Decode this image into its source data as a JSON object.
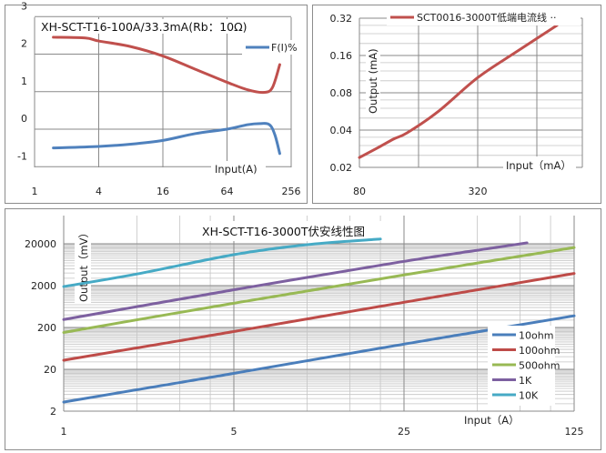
{
  "chart_data": [
    {
      "type": "line",
      "title": "XH-SCT-T16-100A/33.3mA(Rb：10Ω)",
      "xlabel": "Input(A)",
      "ylabel": "",
      "x_scale": "log2",
      "xlim": [
        1,
        256
      ],
      "ylim": [
        -1,
        3
      ],
      "x_ticks": [
        "1",
        "4",
        "16",
        "64",
        "256"
      ],
      "y_ticks": [
        "-1",
        "0",
        "1",
        "2",
        "3"
      ],
      "grid": true,
      "legend": "top-right",
      "series": [
        {
          "color": "#c0504d",
          "x": [
            1.5,
            3,
            4,
            8,
            16,
            32,
            64,
            100,
            140,
            170,
            200
          ],
          "y": [
            2.45,
            2.43,
            2.35,
            2.2,
            1.95,
            1.6,
            1.25,
            1.05,
            0.98,
            1.1,
            1.72
          ]
        },
        {
          "name": "F(I)%",
          "color": "#4f81bd",
          "x": [
            1.5,
            4,
            8,
            16,
            32,
            64,
            100,
            130,
            160,
            180,
            200
          ],
          "y": [
            -0.5,
            -0.46,
            -0.4,
            -0.3,
            -0.12,
            0.0,
            0.12,
            0.15,
            0.12,
            -0.15,
            -0.65
          ]
        }
      ]
    },
    {
      "type": "line",
      "title": "",
      "xlabel": "Input（mA）",
      "ylabel": "Output (mA)",
      "x_scale": "log",
      "y_scale": "log",
      "xlim": [
        80,
        1100
      ],
      "ylim": [
        0.02,
        0.32
      ],
      "x_ticks": [
        "80",
        "320"
      ],
      "y_ticks": [
        "0.02",
        "0.04",
        "0.08",
        "0.16",
        "0.32"
      ],
      "grid": true,
      "legend": "top",
      "series": [
        {
          "name": "SCT0016-3000T低端电流线 ··",
          "color": "#c0504d",
          "x": [
            80,
            100,
            120,
            140,
            200,
            320,
            500,
            810
          ],
          "y": [
            0.024,
            0.029,
            0.034,
            0.038,
            0.056,
            0.106,
            0.17,
            0.28
          ]
        }
      ]
    },
    {
      "type": "line",
      "title": "XH-SCT-T16-3000T伏安线性图",
      "xlabel": "Input（A）",
      "ylabel": "Output（mV）",
      "x_scale": "log",
      "y_scale": "log",
      "xlim": [
        1,
        125
      ],
      "ylim": [
        2,
        20000
      ],
      "x_ticks": [
        "1",
        "5",
        "25",
        "125"
      ],
      "y_ticks": [
        "2",
        "20",
        "200",
        "2000",
        "20000"
      ],
      "grid": true,
      "legend": "right",
      "series": [
        {
          "name": "10ohm",
          "color": "#4a7ebb",
          "x": [
            1,
            5,
            25,
            125
          ],
          "y": [
            3.3,
            16,
            80,
            380
          ]
        },
        {
          "name": "100ohm",
          "color": "#be4b48",
          "x": [
            1,
            5,
            25,
            125
          ],
          "y": [
            33,
            160,
            800,
            3900
          ]
        },
        {
          "name": "500ohm",
          "color": "#98b954",
          "x": [
            1,
            5,
            25,
            125
          ],
          "y": [
            152,
            760,
            3600,
            16300
          ]
        },
        {
          "name": "1K",
          "color": "#7d60a0",
          "x": [
            1,
            5,
            25,
            50,
            80
          ],
          "y": [
            310,
            1590,
            7600,
            14000,
            21000
          ]
        },
        {
          "name": "10K",
          "color": "#46aac5",
          "x": [
            1,
            2,
            5,
            10,
            20
          ],
          "y": [
            1900,
            3800,
            11000,
            19000,
            26000
          ]
        }
      ]
    }
  ]
}
